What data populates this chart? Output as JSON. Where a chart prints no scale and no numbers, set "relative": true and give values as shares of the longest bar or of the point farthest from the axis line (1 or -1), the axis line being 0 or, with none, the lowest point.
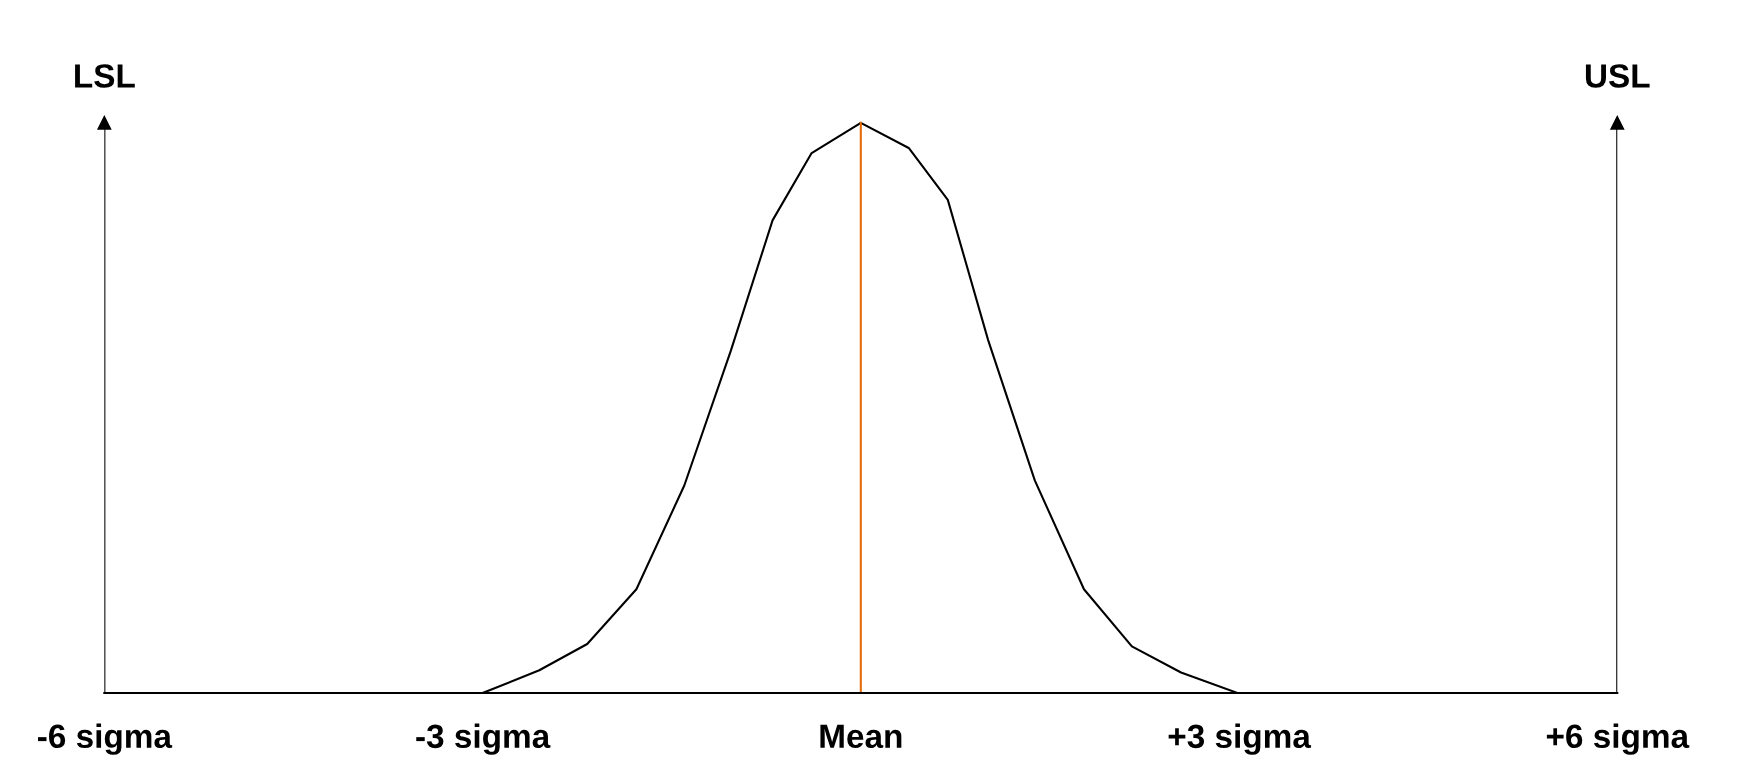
{
  "chart_data": {
    "type": "line",
    "relative": true,
    "grid": false,
    "legend": false,
    "xlim": [
      -6,
      6
    ],
    "xticks": [
      {
        "value": -6,
        "label": "-6 sigma"
      },
      {
        "value": -3,
        "label": "-3 sigma"
      },
      {
        "value": 0,
        "label": "Mean"
      },
      {
        "value": 3,
        "label": "+3 sigma"
      },
      {
        "value": 6,
        "label": "+6 sigma"
      }
    ],
    "series": [
      {
        "color": "#000000",
        "x": [
          -3.0,
          -2.55,
          -2.17,
          -1.78,
          -1.4,
          -1.03,
          -0.7,
          -0.39,
          0,
          0.38,
          0.69,
          1.01,
          1.38,
          1.77,
          2.15,
          2.54,
          2.99
        ],
        "values": [
          0,
          0.04,
          0.086,
          0.182,
          0.364,
          0.601,
          0.829,
          0.947,
          1,
          0.956,
          0.865,
          0.619,
          0.373,
          0.182,
          0.082,
          0.036,
          0
        ]
      }
    ],
    "ref_lines": [
      {
        "axis": "x",
        "value": -6,
        "label": "LSL",
        "color": "#000000"
      },
      {
        "axis": "x",
        "value": 6,
        "label": "USL",
        "color": "#000000"
      },
      {
        "axis": "x",
        "value": 0,
        "color": "#e36c09"
      }
    ]
  }
}
